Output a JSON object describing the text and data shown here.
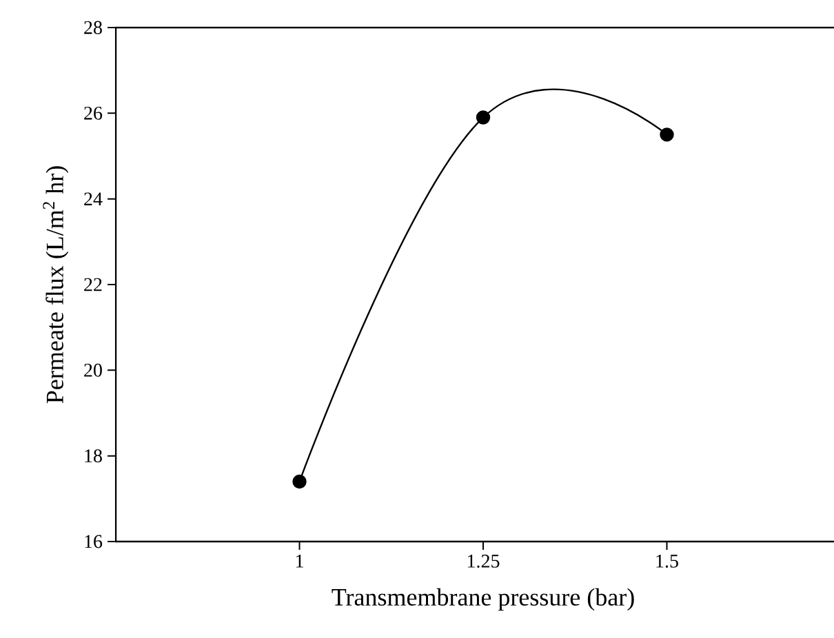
{
  "chart_data": {
    "type": "line",
    "xlabel": "Transmembrane pressure (bar)",
    "ylabel": "Permeate flux (L/m$^{2}$ hr)",
    "x": [
      1,
      1.25,
      1.5
    ],
    "series": [
      {
        "color": "#000000",
        "values": [
          17.4,
          25.9,
          25.5
        ]
      }
    ],
    "xlim": [
      0.75,
      1.75
    ],
    "xticks": [
      1,
      1.25,
      1.5
    ],
    "ylim": [
      16,
      28
    ],
    "yticks": [
      16,
      18,
      20,
      22,
      24,
      26,
      28
    ],
    "marker": "circle",
    "line_style": "solid"
  }
}
